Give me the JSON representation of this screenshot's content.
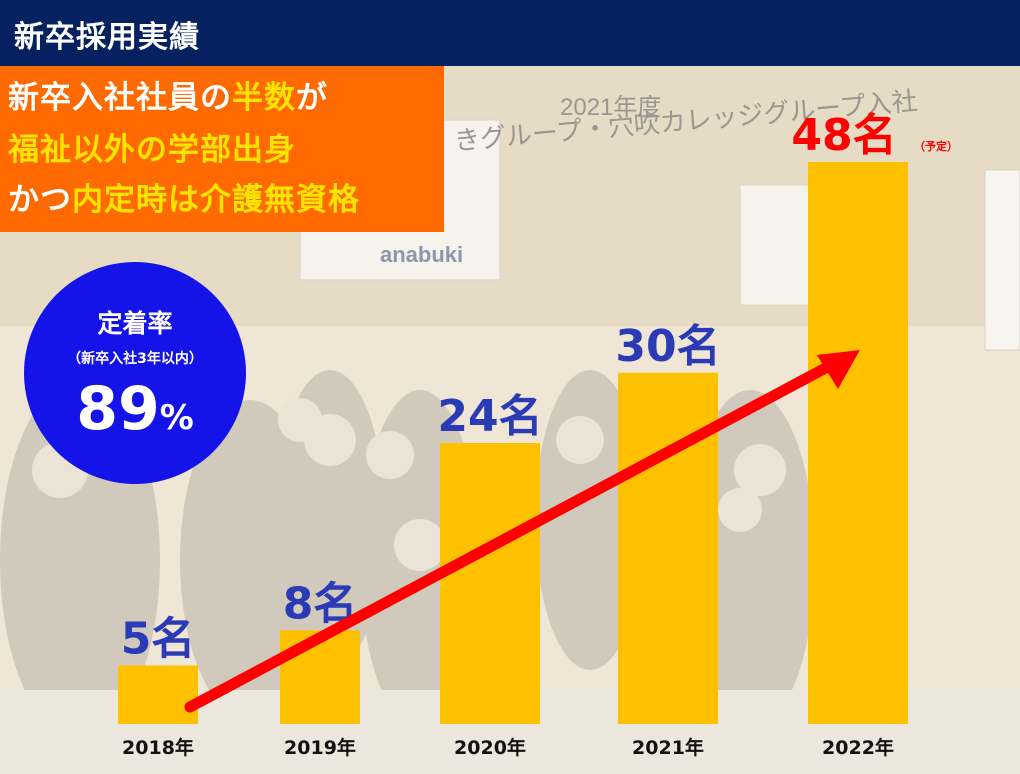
{
  "header": {
    "title": "新卒採用実績"
  },
  "callout": {
    "line1": [
      {
        "text": "新卒入社社員の",
        "color": "white"
      },
      {
        "text": "半数",
        "color": "yellow"
      },
      {
        "text": "が",
        "color": "white"
      }
    ],
    "line2": [
      {
        "text": "福祉以外の学部出身",
        "color": "yellow"
      }
    ],
    "line3": [
      {
        "text": "かつ",
        "color": "white"
      },
      {
        "text": "内定時は介護無資格",
        "color": "yellow"
      }
    ]
  },
  "retention": {
    "label": "定着率",
    "sublabel": "（新卒入社3年以内）",
    "value": "89",
    "unit": "%"
  },
  "photo_banner": {
    "line": "2021年度",
    "caption": "きグループ・穴吹カレッジグループ入社",
    "logo": "anabuki"
  },
  "colors": {
    "header": "#052160",
    "callout": "#ff6a00",
    "highlight": "#ffe400",
    "circle": "#1414e8",
    "bar": "#ffc000",
    "label": "#2b3ab5",
    "last_label": "#ff0000",
    "arrow": "#ff0000"
  },
  "chart_data": {
    "type": "bar",
    "categories": [
      "2018年",
      "2019年",
      "2020年",
      "2021年",
      "2022年"
    ],
    "values": [
      5,
      8,
      24,
      30,
      48
    ],
    "data_labels": [
      "5名",
      "8名",
      "24名",
      "30名",
      "48名"
    ],
    "annotation": "（予定）",
    "ylim": [
      0,
      48
    ],
    "grid": false,
    "trend_arrow": true,
    "title": "",
    "xlabel": "",
    "ylabel": ""
  }
}
